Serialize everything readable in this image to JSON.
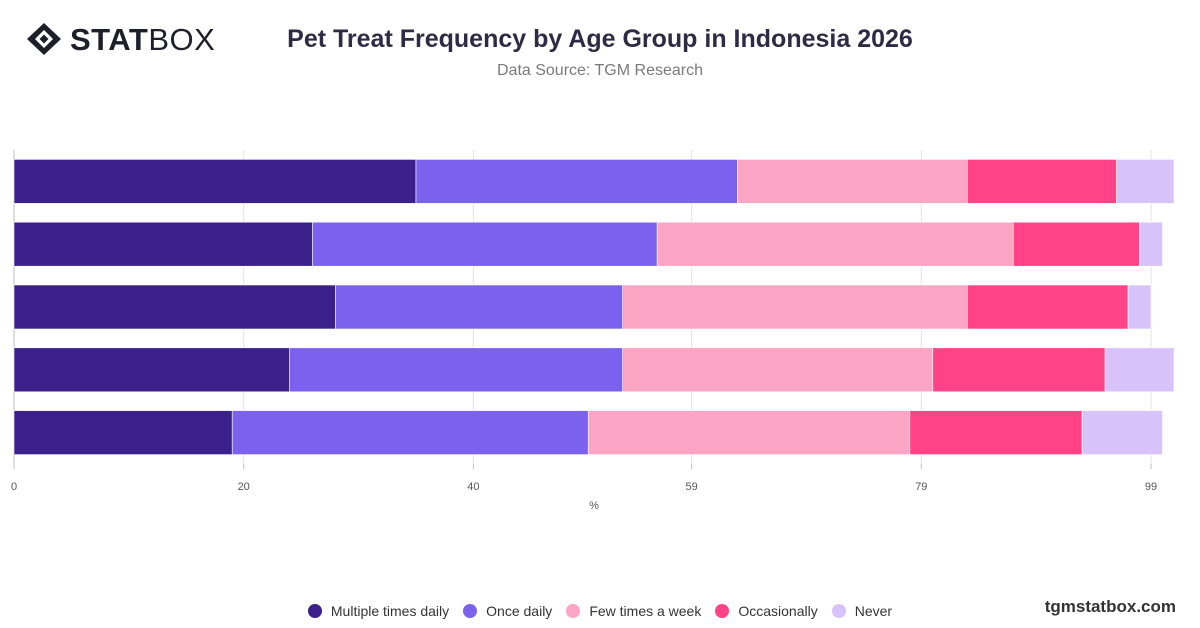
{
  "header": {
    "logo_bold": "STAT",
    "logo_light": "BOX",
    "title": "Pet Treat Frequency by Age Group in Indonesia 2026",
    "subtitle": "Data Source: TGM Research"
  },
  "footer": {
    "brand": "tgmstatbox.com"
  },
  "chart_data": {
    "type": "bar",
    "orientation": "horizontal",
    "stacked": true,
    "categories": [
      "",
      "",
      "",
      "",
      ""
    ],
    "xlabel": "%",
    "xlim": [
      0,
      101
    ],
    "ticks": [
      0,
      20,
      40,
      59,
      79,
      99
    ],
    "grid": true,
    "legend_position": "bottom",
    "series": [
      {
        "name": "Multiple times daily",
        "color": "#3b1f8a",
        "values": [
          35,
          26,
          28,
          24,
          19
        ]
      },
      {
        "name": "Once daily",
        "color": "#7b61ee",
        "values": [
          28,
          30,
          25,
          29,
          31
        ]
      },
      {
        "name": "Few times a week",
        "color": "#fba4c3",
        "values": [
          20,
          31,
          30,
          27,
          28
        ]
      },
      {
        "name": "Occasionally",
        "color": "#ff4386",
        "values": [
          13,
          11,
          14,
          15,
          15
        ]
      },
      {
        "name": "Never",
        "color": "#d7c3fa",
        "values": [
          5,
          2,
          2,
          6,
          7
        ]
      }
    ]
  }
}
